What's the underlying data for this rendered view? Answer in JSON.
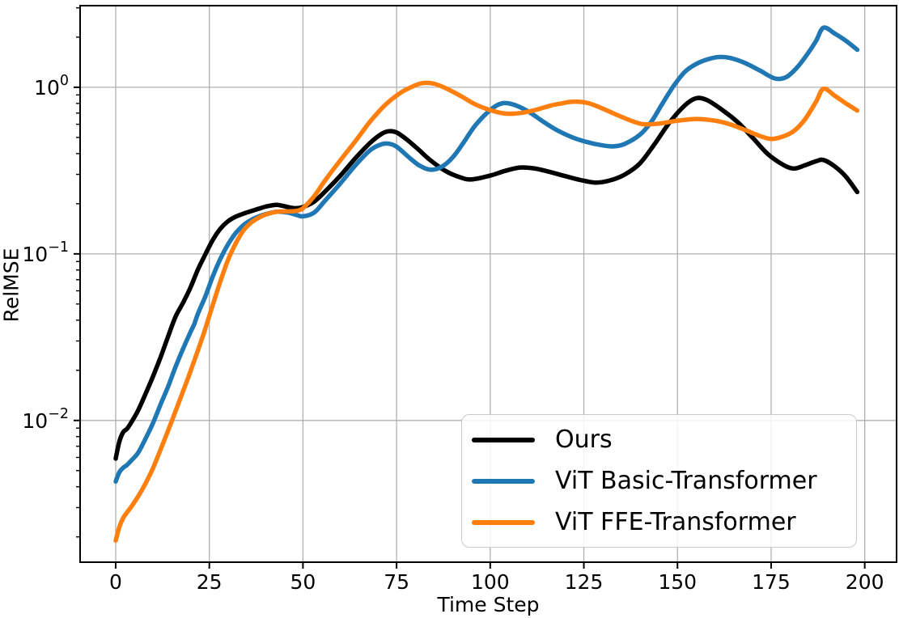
{
  "figure": {
    "background": "#ffffff",
    "grid_color": "#b0b0b0",
    "spine_color": "#000000",
    "text_color": "#000000"
  },
  "chart_data": {
    "type": "line",
    "title": "",
    "xlabel": "Time Step",
    "ylabel": "RelMSE",
    "yscale": "log",
    "xlim": [
      -9.5,
      208.5
    ],
    "ylim": [
      0.00141,
      3.09
    ],
    "grid": true,
    "legend_position": "lower right",
    "x_ticks": [
      {
        "value": 0,
        "label": "0"
      },
      {
        "value": 25,
        "label": "25"
      },
      {
        "value": 50,
        "label": "50"
      },
      {
        "value": 75,
        "label": "75"
      },
      {
        "value": 100,
        "label": "100"
      },
      {
        "value": 125,
        "label": "125"
      },
      {
        "value": 150,
        "label": "150"
      },
      {
        "value": 175,
        "label": "175"
      },
      {
        "value": 200,
        "label": "200"
      }
    ],
    "y_ticks": [
      {
        "value": 1,
        "base": "10",
        "exponent": "0"
      },
      {
        "value": 0.1,
        "base": "10",
        "exponent": "−1"
      },
      {
        "value": 0.01,
        "base": "10",
        "exponent": "−2"
      }
    ],
    "series": [
      {
        "name": "Ours",
        "slug": "ours",
        "color": "#000000",
        "points": [
          [
            0,
            0.0059
          ],
          [
            1,
            0.0075
          ],
          [
            2,
            0.0085
          ],
          [
            3,
            0.0089
          ],
          [
            4,
            0.0096
          ],
          [
            6,
            0.0115
          ],
          [
            8,
            0.0145
          ],
          [
            10,
            0.0185
          ],
          [
            12,
            0.024
          ],
          [
            14,
            0.032
          ],
          [
            16,
            0.042
          ],
          [
            18,
            0.051
          ],
          [
            20,
            0.063
          ],
          [
            22,
            0.081
          ],
          [
            24,
            0.1
          ],
          [
            26,
            0.122
          ],
          [
            28,
            0.142
          ],
          [
            30,
            0.157
          ],
          [
            32,
            0.167
          ],
          [
            34,
            0.174
          ],
          [
            36,
            0.18
          ],
          [
            38,
            0.186
          ],
          [
            40,
            0.192
          ],
          [
            43,
            0.197
          ],
          [
            46,
            0.191
          ],
          [
            48,
            0.188
          ],
          [
            50,
            0.191
          ],
          [
            53,
            0.206
          ],
          [
            56,
            0.238
          ],
          [
            60,
            0.295
          ],
          [
            64,
            0.375
          ],
          [
            68,
            0.465
          ],
          [
            71,
            0.525
          ],
          [
            73,
            0.545
          ],
          [
            75,
            0.535
          ],
          [
            78,
            0.48
          ],
          [
            81,
            0.42
          ],
          [
            84,
            0.365
          ],
          [
            88,
            0.315
          ],
          [
            92,
            0.288
          ],
          [
            95,
            0.28
          ],
          [
            100,
            0.295
          ],
          [
            104,
            0.315
          ],
          [
            108,
            0.33
          ],
          [
            112,
            0.325
          ],
          [
            116,
            0.31
          ],
          [
            120,
            0.293
          ],
          [
            124,
            0.278
          ],
          [
            128,
            0.268
          ],
          [
            132,
            0.276
          ],
          [
            136,
            0.3
          ],
          [
            140,
            0.35
          ],
          [
            144,
            0.46
          ],
          [
            148,
            0.62
          ],
          [
            152,
            0.78
          ],
          [
            155,
            0.86
          ],
          [
            158,
            0.835
          ],
          [
            162,
            0.73
          ],
          [
            166,
            0.62
          ],
          [
            170,
            0.5
          ],
          [
            174,
            0.4
          ],
          [
            178,
            0.345
          ],
          [
            181,
            0.325
          ],
          [
            184,
            0.34
          ],
          [
            187,
            0.36
          ],
          [
            189,
            0.366
          ],
          [
            192,
            0.335
          ],
          [
            195,
            0.29
          ],
          [
            198,
            0.235
          ]
        ]
      },
      {
        "name": "ViT Basic-Transformer",
        "slug": "vit-basic-transformer",
        "color": "#1f77b4",
        "points": [
          [
            0,
            0.0043
          ],
          [
            1,
            0.0049
          ],
          [
            2,
            0.0052
          ],
          [
            3,
            0.0054
          ],
          [
            4,
            0.0057
          ],
          [
            6,
            0.0064
          ],
          [
            8,
            0.0078
          ],
          [
            10,
            0.0097
          ],
          [
            12,
            0.0125
          ],
          [
            14,
            0.016
          ],
          [
            16,
            0.021
          ],
          [
            18,
            0.027
          ],
          [
            20,
            0.034
          ],
          [
            21,
            0.038
          ],
          [
            22,
            0.044
          ],
          [
            24,
            0.056
          ],
          [
            26,
            0.074
          ],
          [
            28,
            0.094
          ],
          [
            30,
            0.114
          ],
          [
            32,
            0.133
          ],
          [
            34,
            0.148
          ],
          [
            36,
            0.159
          ],
          [
            38,
            0.167
          ],
          [
            40,
            0.173
          ],
          [
            43,
            0.179
          ],
          [
            46,
            0.177
          ],
          [
            48,
            0.172
          ],
          [
            50,
            0.168
          ],
          [
            53,
            0.177
          ],
          [
            56,
            0.21
          ],
          [
            60,
            0.265
          ],
          [
            64,
            0.34
          ],
          [
            68,
            0.42
          ],
          [
            71,
            0.455
          ],
          [
            73,
            0.458
          ],
          [
            75,
            0.44
          ],
          [
            78,
            0.385
          ],
          [
            81,
            0.34
          ],
          [
            84,
            0.32
          ],
          [
            87,
            0.333
          ],
          [
            90,
            0.38
          ],
          [
            93,
            0.47
          ],
          [
            96,
            0.59
          ],
          [
            100,
            0.73
          ],
          [
            103,
            0.8
          ],
          [
            106,
            0.79
          ],
          [
            110,
            0.72
          ],
          [
            114,
            0.625
          ],
          [
            118,
            0.55
          ],
          [
            122,
            0.5
          ],
          [
            126,
            0.468
          ],
          [
            130,
            0.448
          ],
          [
            133,
            0.442
          ],
          [
            136,
            0.458
          ],
          [
            140,
            0.52
          ],
          [
            143,
            0.62
          ],
          [
            146,
            0.8
          ],
          [
            149,
            1.02
          ],
          [
            152,
            1.24
          ],
          [
            155,
            1.38
          ],
          [
            158,
            1.47
          ],
          [
            161,
            1.52
          ],
          [
            164,
            1.5
          ],
          [
            168,
            1.4
          ],
          [
            172,
            1.26
          ],
          [
            176,
            1.13
          ],
          [
            179,
            1.15
          ],
          [
            182,
            1.32
          ],
          [
            185,
            1.62
          ],
          [
            187,
            1.9
          ],
          [
            189,
            2.28
          ],
          [
            192,
            2.1
          ],
          [
            195,
            1.9
          ],
          [
            198,
            1.68
          ]
        ]
      },
      {
        "name": "ViT FFE-Transformer",
        "slug": "vit-ffe-transformer",
        "color": "#ff7f0e",
        "points": [
          [
            0,
            0.0019
          ],
          [
            1,
            0.0023
          ],
          [
            2,
            0.0026
          ],
          [
            3,
            0.0028
          ],
          [
            4,
            0.003
          ],
          [
            6,
            0.0035
          ],
          [
            8,
            0.0042
          ],
          [
            10,
            0.0052
          ],
          [
            12,
            0.0067
          ],
          [
            14,
            0.0087
          ],
          [
            16,
            0.0114
          ],
          [
            18,
            0.015
          ],
          [
            20,
            0.0198
          ],
          [
            22,
            0.0265
          ],
          [
            24,
            0.036
          ],
          [
            26,
            0.05
          ],
          [
            28,
            0.069
          ],
          [
            30,
            0.092
          ],
          [
            32,
            0.115
          ],
          [
            34,
            0.137
          ],
          [
            36,
            0.153
          ],
          [
            38,
            0.164
          ],
          [
            40,
            0.172
          ],
          [
            43,
            0.179
          ],
          [
            46,
            0.18
          ],
          [
            48,
            0.181
          ],
          [
            50,
            0.188
          ],
          [
            53,
            0.222
          ],
          [
            56,
            0.278
          ],
          [
            60,
            0.365
          ],
          [
            64,
            0.475
          ],
          [
            68,
            0.625
          ],
          [
            72,
            0.785
          ],
          [
            76,
            0.925
          ],
          [
            79,
            1.005
          ],
          [
            82,
            1.06
          ],
          [
            85,
            1.05
          ],
          [
            88,
            0.99
          ],
          [
            92,
            0.89
          ],
          [
            96,
            0.79
          ],
          [
            100,
            0.73
          ],
          [
            104,
            0.695
          ],
          [
            108,
            0.7
          ],
          [
            112,
            0.73
          ],
          [
            116,
            0.775
          ],
          [
            119,
            0.8
          ],
          [
            122,
            0.82
          ],
          [
            126,
            0.805
          ],
          [
            130,
            0.745
          ],
          [
            134,
            0.68
          ],
          [
            138,
            0.625
          ],
          [
            141,
            0.6
          ],
          [
            145,
            0.605
          ],
          [
            150,
            0.63
          ],
          [
            155,
            0.645
          ],
          [
            160,
            0.63
          ],
          [
            164,
            0.6
          ],
          [
            168,
            0.555
          ],
          [
            172,
            0.51
          ],
          [
            175,
            0.49
          ],
          [
            178,
            0.505
          ],
          [
            181,
            0.545
          ],
          [
            184,
            0.64
          ],
          [
            187,
            0.82
          ],
          [
            189,
            0.98
          ],
          [
            192,
            0.89
          ],
          [
            195,
            0.8
          ],
          [
            198,
            0.725
          ]
        ]
      }
    ]
  }
}
